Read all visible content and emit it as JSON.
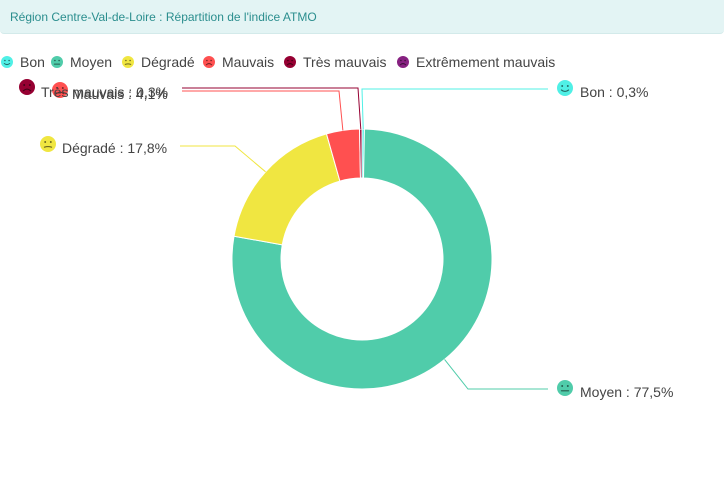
{
  "header": {
    "title": "Région Centre-Val-de-Loire : Répartition de l'indice ATMO"
  },
  "legend": [
    {
      "label": "Bon",
      "color": "#50f0e6",
      "icon": "smile-face-icon"
    },
    {
      "label": "Moyen",
      "color": "#50ccaa",
      "icon": "neutral-face-icon"
    },
    {
      "label": "Dégradé",
      "color": "#f0e641",
      "icon": "slight-frown-face-icon"
    },
    {
      "label": "Mauvais",
      "color": "#ff5050",
      "icon": "frown-face-icon"
    },
    {
      "label": "Très mauvais",
      "color": "#960032",
      "icon": "sad-face-icon"
    },
    {
      "label": "Extrêmement mauvais",
      "color": "#872181",
      "icon": "very-sad-face-icon"
    }
  ],
  "chart_data": {
    "type": "pie",
    "title": "Région Centre-Val-de-Loire : Répartition de l'indice ATMO",
    "donut": true,
    "slices": [
      {
        "name": "Bon",
        "value": 0.3,
        "label": "Bon : 0,3%",
        "color": "#50f0e6"
      },
      {
        "name": "Moyen",
        "value": 77.5,
        "label": "Moyen : 77,5%",
        "color": "#50ccaa"
      },
      {
        "name": "Dégradé",
        "value": 17.8,
        "label": "Dégradé : 17,8%",
        "color": "#f0e641"
      },
      {
        "name": "Mauvais",
        "value": 4.1,
        "label": "Mauvais : 4,1%",
        "color": "#ff5050"
      },
      {
        "name": "Très mauvais",
        "value": 0.3,
        "label": "Très mauvais : 0,3%",
        "color": "#960032"
      }
    ]
  }
}
